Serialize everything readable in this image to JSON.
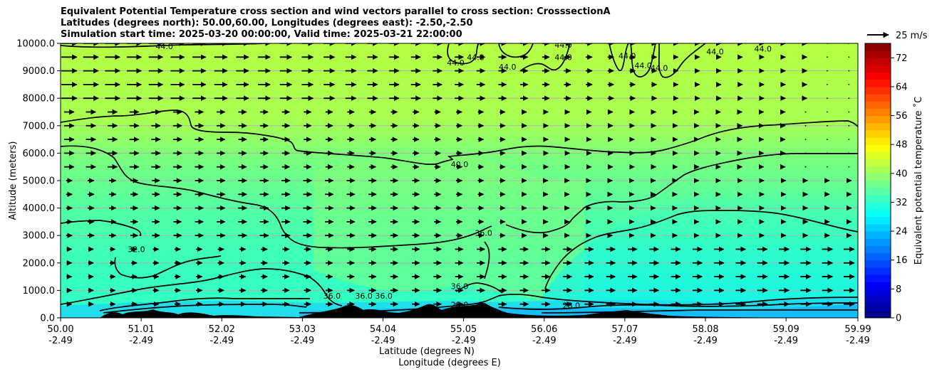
{
  "title_lines": [
    "Equivalent Potential Temperature cross section and wind vectors parallel to cross section: CrosssectionA",
    "Latitudes (degrees north): 50.00,60.00, Longitudes (degrees east): -2.50,-2.50",
    "Simulation start time: 2025-03-20 00:00:00, Valid time: 2025-03-21 22:00:00"
  ],
  "chart_data": {
    "type": "heatmap",
    "ylabel": "Altitude (meters)",
    "xlabel_lines": [
      "Latitude (degrees N)",
      "Longitude (degrees E)"
    ],
    "ylim": [
      0,
      10000
    ],
    "yticks": [
      "0.0",
      "1000.0",
      "2000.0",
      "3000.0",
      "4000.0",
      "5000.0",
      "6000.0",
      "7000.0",
      "8000.0",
      "9000.0",
      "10000.0"
    ],
    "xlim": [
      50.0,
      59.99
    ],
    "xticks": [
      {
        "lat": "50.00",
        "lon": "-2.49"
      },
      {
        "lat": "51.01",
        "lon": "-2.49"
      },
      {
        "lat": "52.02",
        "lon": "-2.49"
      },
      {
        "lat": "53.03",
        "lon": "-2.49"
      },
      {
        "lat": "54.04",
        "lon": "-2.49"
      },
      {
        "lat": "55.05",
        "lon": "-2.49"
      },
      {
        "lat": "56.06",
        "lon": "-2.49"
      },
      {
        "lat": "57.07",
        "lon": "-2.49"
      },
      {
        "lat": "58.08",
        "lon": "-2.49"
      },
      {
        "lat": "59.09",
        "lon": "-2.49"
      },
      {
        "lat": "59.99",
        "lon": "-2.49"
      }
    ],
    "grid": "horizontal",
    "colorbar": {
      "label": "Equivalent potential temperature ˚C",
      "range": [
        0,
        76
      ],
      "ticks": [
        "0",
        "8",
        "16",
        "24",
        "32",
        "40",
        "48",
        "56",
        "64",
        "72"
      ],
      "colormap": "jet"
    },
    "contour_labels": [
      "44.0",
      "40.0",
      "36.0",
      "32.0",
      "28.0"
    ],
    "contour_label_positions": [
      {
        "text": "44.0",
        "lat": 51.3,
        "alt": 9900
      },
      {
        "text": "44.0",
        "lat": 54.95,
        "alt": 9300
      },
      {
        "text": "44.0",
        "lat": 55.2,
        "alt": 9500
      },
      {
        "text": "44.0",
        "lat": 55.6,
        "alt": 9150
      },
      {
        "text": "44.0",
        "lat": 56.3,
        "alt": 9950
      },
      {
        "text": "44.0",
        "lat": 56.3,
        "alt": 9500
      },
      {
        "text": "44.0",
        "lat": 57.1,
        "alt": 9550
      },
      {
        "text": "44.0",
        "lat": 57.3,
        "alt": 9200
      },
      {
        "text": "44.0",
        "lat": 57.5,
        "alt": 9100
      },
      {
        "text": "44.0",
        "lat": 58.2,
        "alt": 9700
      },
      {
        "text": "44.0",
        "lat": 58.8,
        "alt": 9800
      },
      {
        "text": "40.0",
        "lat": 55.0,
        "alt": 5600
      },
      {
        "text": "36.0",
        "lat": 53.4,
        "alt": 800
      },
      {
        "text": "36.0",
        "lat": 53.8,
        "alt": 800
      },
      {
        "text": "36.0",
        "lat": 54.05,
        "alt": 800
      },
      {
        "text": "36.0",
        "lat": 55.3,
        "alt": 3100
      },
      {
        "text": "36.0",
        "lat": 55.0,
        "alt": 1150
      },
      {
        "text": "32.0",
        "lat": 50.95,
        "alt": 2500
      },
      {
        "text": "28.0",
        "lat": 55.0,
        "alt": 480
      },
      {
        "text": "28.0",
        "lat": 56.4,
        "alt": 450
      }
    ],
    "wind_key": {
      "label": "25 m/s",
      "speed": 25
    }
  }
}
